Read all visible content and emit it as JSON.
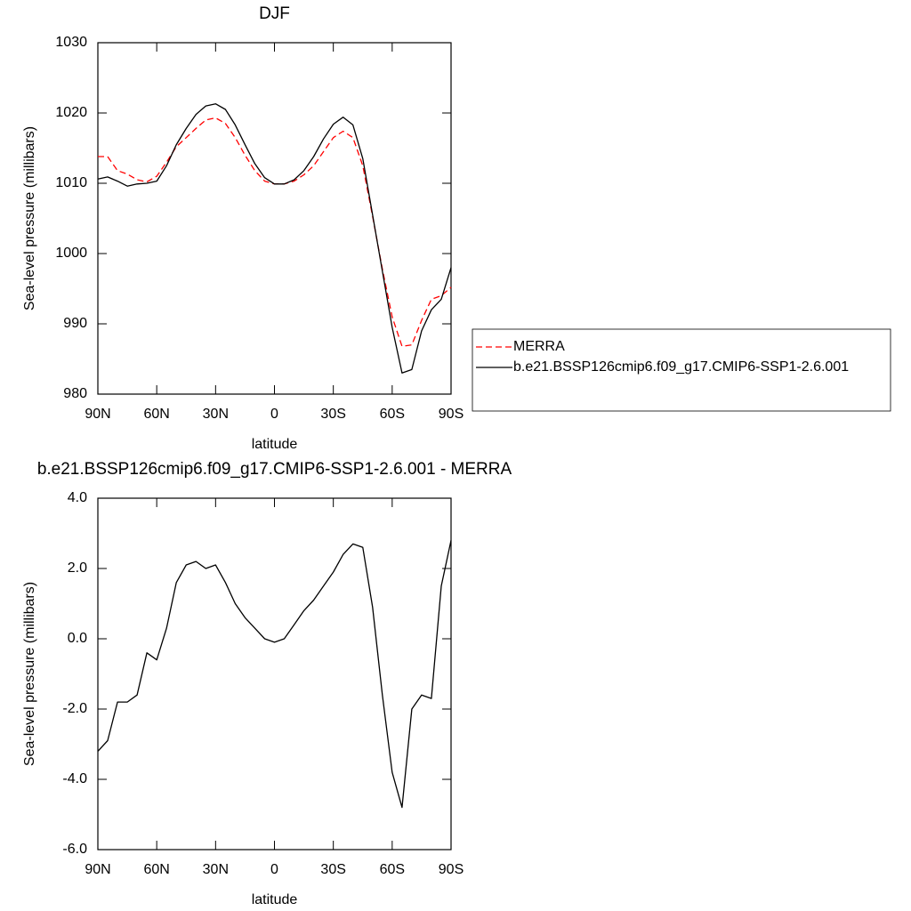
{
  "chart_data": [
    {
      "type": "line",
      "title": "DJF",
      "xlabel": "latitude",
      "ylabel": "Sea-level pressure (millibars)",
      "x": [
        90,
        85,
        80,
        75,
        70,
        65,
        60,
        55,
        50,
        45,
        40,
        35,
        30,
        25,
        20,
        15,
        10,
        5,
        0,
        -5,
        -10,
        -15,
        -20,
        -25,
        -30,
        -35,
        -40,
        -45,
        -50,
        -55,
        -60,
        -65,
        -70,
        -75,
        -80,
        -85,
        -90
      ],
      "xlim": [
        90,
        -90
      ],
      "xticks": [
        {
          "value": 90,
          "label": "90N"
        },
        {
          "value": 60,
          "label": "60N"
        },
        {
          "value": 30,
          "label": "30N"
        },
        0,
        {
          "value": -30,
          "label": "30S"
        },
        {
          "value": -60,
          "label": "60S"
        },
        {
          "value": -90,
          "label": "90S"
        }
      ],
      "ylim": [
        980,
        1030
      ],
      "yticks": [
        980,
        990,
        1000,
        1010,
        1020,
        1030
      ],
      "legend": "right",
      "series": [
        {
          "name": "MERRA",
          "color": "#ff0000",
          "style": "dashed",
          "values": [
            1013.8,
            1013.8,
            1011.8,
            1011.3,
            1010.5,
            1010.2,
            1011.0,
            1013.0,
            1015.2,
            1016.5,
            1017.8,
            1019.0,
            1019.3,
            1018.5,
            1016.5,
            1014.0,
            1011.8,
            1010.3,
            1009.9,
            1009.9,
            1010.3,
            1011.2,
            1012.5,
            1014.5,
            1016.5,
            1017.4,
            1016.5,
            1012.5,
            1005.3,
            997.8,
            991.0,
            986.8,
            987.0,
            990.5,
            993.5,
            994.0,
            995.2
          ]
        },
        {
          "name": "b.e21.BSSP126cmip6.f09_g17.CMIP6-SSP1-2.6.001",
          "color": "#000000",
          "style": "solid",
          "values": [
            1010.6,
            1010.9,
            1010.3,
            1009.6,
            1009.9,
            1010.0,
            1010.3,
            1012.5,
            1015.5,
            1017.8,
            1019.8,
            1021.0,
            1021.3,
            1020.5,
            1018.3,
            1015.5,
            1012.8,
            1010.8,
            1009.9,
            1009.9,
            1010.5,
            1011.8,
            1013.8,
            1016.3,
            1018.4,
            1019.4,
            1018.3,
            1013.5,
            1005.5,
            997.5,
            989.5,
            983.0,
            983.5,
            989.0,
            992.0,
            993.5,
            998.0
          ]
        }
      ]
    },
    {
      "type": "line",
      "title": "b.e21.BSSP126cmip6.f09_g17.CMIP6-SSP1-2.6.001 - MERRA",
      "xlabel": "latitude",
      "ylabel": "Sea-level pressure (millibars)",
      "x": [
        90,
        85,
        80,
        75,
        70,
        65,
        60,
        55,
        50,
        45,
        40,
        35,
        30,
        25,
        20,
        15,
        10,
        5,
        0,
        -5,
        -10,
        -15,
        -20,
        -25,
        -30,
        -35,
        -40,
        -45,
        -50,
        -55,
        -60,
        -65,
        -70,
        -75,
        -80,
        -85,
        -90
      ],
      "xlim": [
        90,
        -90
      ],
      "xticks": [
        {
          "value": 90,
          "label": "90N"
        },
        {
          "value": 60,
          "label": "60N"
        },
        {
          "value": 30,
          "label": "30N"
        },
        0,
        {
          "value": -30,
          "label": "30S"
        },
        {
          "value": -60,
          "label": "60S"
        },
        {
          "value": -90,
          "label": "90S"
        }
      ],
      "ylim": [
        -6,
        4
      ],
      "yticks": [
        {
          "value": -6,
          "label": "-6.0"
        },
        {
          "value": -4,
          "label": "-4.0"
        },
        {
          "value": -2,
          "label": "-2.0"
        },
        {
          "value": 0,
          "label": "0.0"
        },
        {
          "value": 2,
          "label": "2.0"
        },
        {
          "value": 4,
          "label": "4.0"
        }
      ],
      "color": "#000000",
      "values": [
        -3.2,
        -2.9,
        -1.8,
        -1.8,
        -1.6,
        -0.4,
        -0.6,
        0.3,
        1.6,
        2.1,
        2.2,
        2.0,
        2.1,
        1.6,
        1.0,
        0.6,
        0.3,
        0.0,
        -0.1,
        0.0,
        0.4,
        0.8,
        1.1,
        1.5,
        1.9,
        2.4,
        2.7,
        2.6,
        0.9,
        -1.6,
        -3.8,
        -4.8,
        -2.0,
        -1.6,
        -1.7,
        1.5,
        2.8
      ]
    }
  ]
}
